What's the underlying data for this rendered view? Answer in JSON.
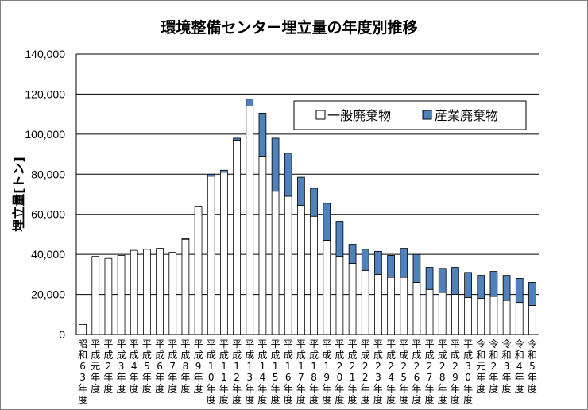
{
  "chart_data": {
    "type": "bar",
    "stacked": true,
    "title": "環境整備センター埋立量の年度別推移",
    "ylabel": "埋立量[トン]",
    "xlabel": "",
    "ylim": [
      0,
      140000
    ],
    "yticks": [
      0,
      20000,
      40000,
      60000,
      80000,
      100000,
      120000,
      140000
    ],
    "ytick_labels": [
      "0",
      "20,000",
      "40,000",
      "60,000",
      "80,000",
      "100,000",
      "120,000",
      "140,000"
    ],
    "grid": true,
    "legend_position": "top-right",
    "categories": [
      "昭和63年度",
      "平成元年度",
      "平成2年度",
      "平成3年度",
      "平成4年度",
      "平成5年度",
      "平成6年度",
      "平成7年度",
      "平成8年度",
      "平成9年度",
      "平成10年度",
      "平成11年度",
      "平成12年度",
      "平成13年度",
      "平成14年度",
      "平成15年度",
      "平成16年度",
      "平成17年度",
      "平成18年度",
      "平成19年度",
      "平成20年度",
      "平成21年度",
      "平成22年度",
      "平成23年度",
      "平成24年度",
      "平成25年度",
      "平成26年度",
      "平成27年度",
      "平成28年度",
      "平成29年度",
      "平成30年度",
      "令和元年度",
      "令和2年度",
      "令和3年度",
      "令和4年度",
      "令和5年度"
    ],
    "series": [
      {
        "name": "一般廃棄物",
        "color": "#ffffff",
        "values": [
          5000,
          39000,
          38000,
          39500,
          42000,
          42500,
          43000,
          41000,
          47500,
          64000,
          79000,
          81000,
          97000,
          114000,
          89000,
          71500,
          69000,
          64500,
          59000,
          47000,
          39000,
          35500,
          32000,
          30000,
          28500,
          28500,
          26000,
          22500,
          21000,
          20000,
          18500,
          18000,
          19000,
          17000,
          16000,
          14500
        ]
      },
      {
        "name": "産業廃棄物",
        "color": "#4f81bd",
        "values": [
          0,
          0,
          0,
          0,
          0,
          0,
          0,
          0,
          500,
          0,
          1000,
          1000,
          1000,
          3500,
          21500,
          26500,
          21500,
          14000,
          14000,
          18500,
          17500,
          9500,
          10500,
          11500,
          11000,
          14500,
          14000,
          11000,
          12000,
          13500,
          12500,
          11500,
          12500,
          12500,
          12000,
          11500
        ]
      }
    ]
  }
}
